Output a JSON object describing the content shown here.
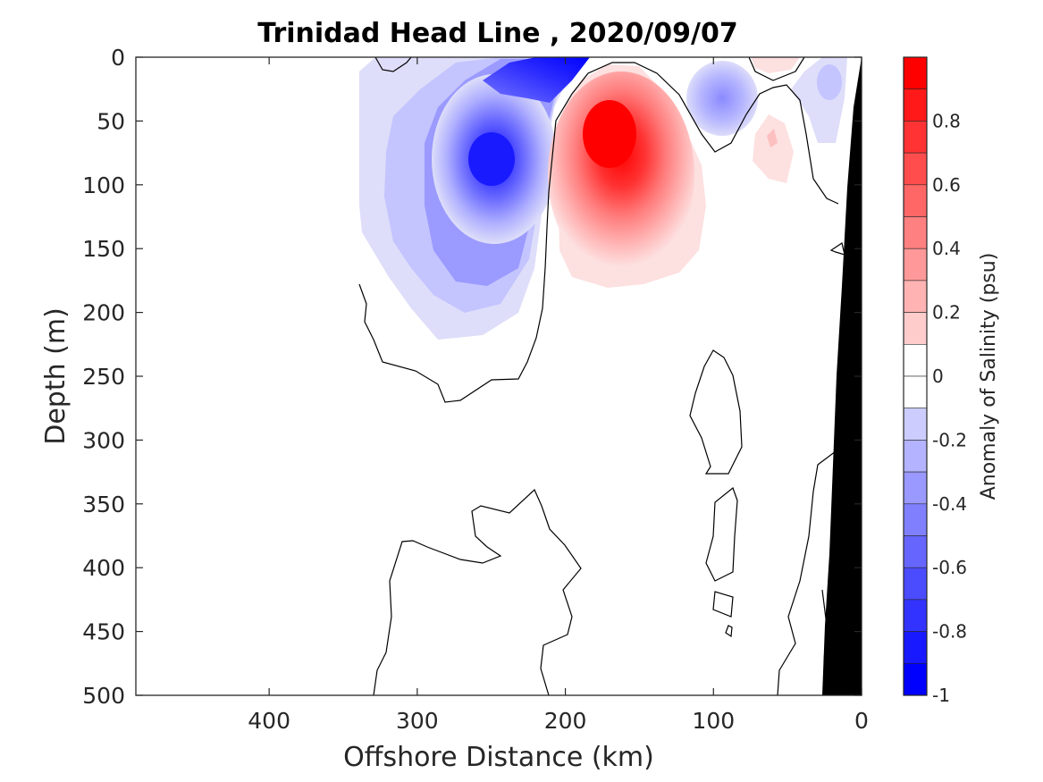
{
  "chart_data": {
    "type": "heatmap",
    "subtype": "filled-contour",
    "title": "Trinidad Head Line , 2020/09/07",
    "xlabel": "Offshore Distance (km)",
    "ylabel": "Depth (m)",
    "xlim": [
      490,
      0
    ],
    "ylim": [
      0,
      500
    ],
    "x_reversed": true,
    "y_reversed": true,
    "xticks": [
      400,
      300,
      200,
      100,
      0
    ],
    "xtick_labels": [
      "400",
      "300",
      "200",
      "100",
      "0"
    ],
    "yticks": [
      0,
      50,
      100,
      150,
      200,
      250,
      300,
      350,
      400,
      450,
      500
    ],
    "ytick_labels": [
      "0",
      "50",
      "100",
      "150",
      "200",
      "250",
      "300",
      "350",
      "400",
      "450",
      "500"
    ],
    "grid": false,
    "zero_contour": "black line",
    "bathymetry_fill": "#000000",
    "colorbar": {
      "label": "Anomaly of Salinity (psu)",
      "range": [
        -1,
        1
      ],
      "tick_values": [
        0.8,
        0.6,
        0.4,
        0.2,
        0,
        -0.2,
        -0.4,
        -0.6,
        -0.8,
        -1
      ],
      "tick_labels": [
        "0.8",
        "0.6",
        "0.4",
        "0.2",
        "0",
        "-0.2",
        "-0.4",
        "-0.6",
        "-0.8",
        "-1"
      ],
      "levels": 20,
      "colormap": "blue-white-red"
    },
    "features": [
      {
        "name": "negative anomaly core",
        "x_km": 248,
        "depth_m": 85,
        "value": -0.9
      },
      {
        "name": "near-surface negative core",
        "x_km": 212,
        "depth_m": 5,
        "value": -0.95
      },
      {
        "name": "positive anomaly core",
        "x_km": 168,
        "depth_m": 70,
        "value": 1.0
      },
      {
        "name": "small negative eddy",
        "x_km": 90,
        "depth_m": 30,
        "value": -0.4
      },
      {
        "name": "small positive patch",
        "x_km": 58,
        "depth_m": 65,
        "value": 0.2
      }
    ]
  }
}
